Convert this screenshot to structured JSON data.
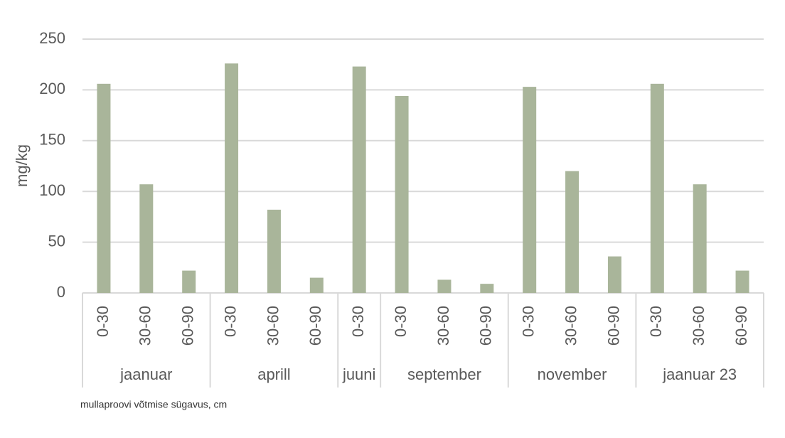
{
  "chart_data": {
    "type": "bar",
    "y_label": "mg/kg",
    "x_label": "mullaproovi võtmise sügavus, cm",
    "color": "#a9b59a",
    "grid": true,
    "ylim": [
      0,
      250
    ],
    "yticks": [
      0,
      50,
      100,
      150,
      200,
      250
    ],
    "groups": [
      {
        "label": "jaanuar",
        "categories": [
          "0-30",
          "30-60",
          "60-90"
        ],
        "values": [
          206,
          107,
          22
        ]
      },
      {
        "label": "aprill",
        "categories": [
          "0-30",
          "30-60",
          "60-90"
        ],
        "values": [
          226,
          82,
          15
        ]
      },
      {
        "label": "juuni",
        "categories": [
          "0-30"
        ],
        "values": [
          223
        ]
      },
      {
        "label": "september",
        "categories": [
          "0-30",
          "30-60",
          "60-90"
        ],
        "values": [
          194,
          13,
          9
        ]
      },
      {
        "label": "november",
        "categories": [
          "0-30",
          "30-60",
          "60-90"
        ],
        "values": [
          203,
          120,
          36
        ]
      },
      {
        "label": "jaanuar 23",
        "categories": [
          "0-30",
          "30-60",
          "60-90"
        ],
        "values": [
          206,
          107,
          22
        ]
      }
    ]
  }
}
